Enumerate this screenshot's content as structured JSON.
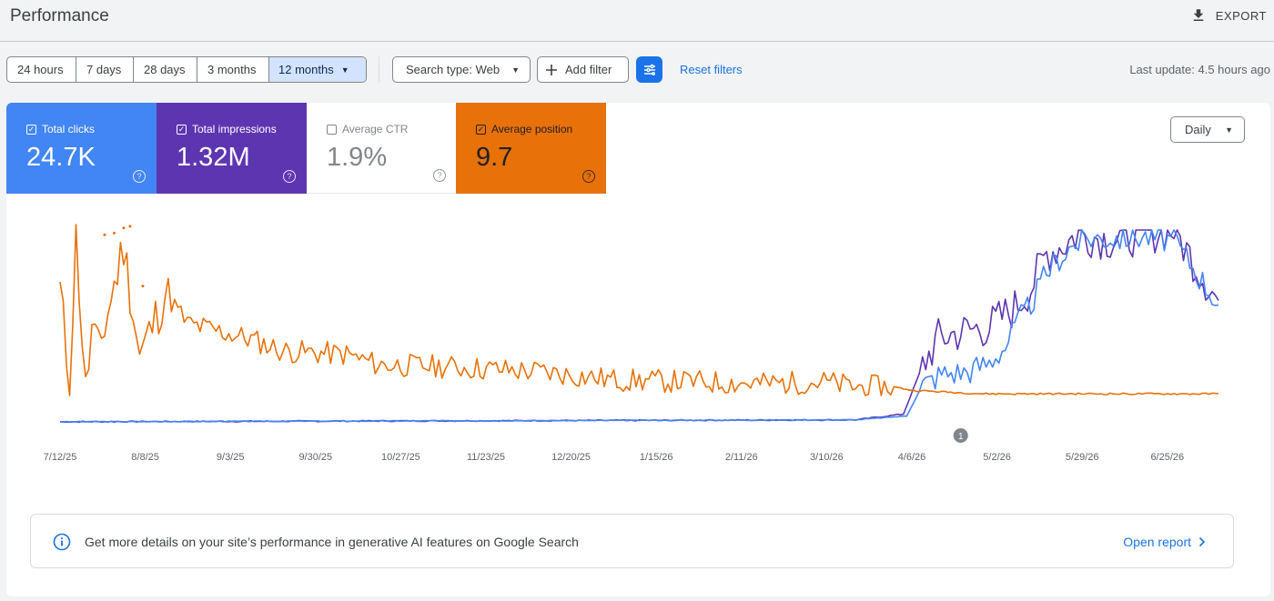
{
  "header": {
    "title": "Performance",
    "export_label": "EXPORT"
  },
  "toolbar": {
    "ranges": [
      "24 hours",
      "7 days",
      "28 days",
      "3 months",
      "12 months"
    ],
    "search_type": "Search type: Web",
    "add_filter": "Add filter",
    "reset_filters": "Reset filters",
    "last_update": "Last update: 4.5 hours ago"
  },
  "metrics": {
    "clicks": {
      "label": "Total clicks",
      "value": "24.7K",
      "checked": true,
      "color": "#4285f4"
    },
    "impressions": {
      "label": "Total impressions",
      "value": "1.32M",
      "checked": true,
      "color": "#5e35b1"
    },
    "ctr": {
      "label": "Average CTR",
      "value": "1.9%",
      "checked": false
    },
    "position": {
      "label": "Average position",
      "value": "9.7",
      "checked": true,
      "color": "#e8710a"
    }
  },
  "granularity": "Daily",
  "chart_data": {
    "type": "line",
    "x_ticks": [
      "7/12/25",
      "8/8/25",
      "9/3/25",
      "9/30/25",
      "10/27/25",
      "11/23/25",
      "12/20/25",
      "1/15/26",
      "2/11/26",
      "3/10/26",
      "4/6/26",
      "5/2/26",
      "5/29/26",
      "6/25/26"
    ],
    "x_range": [
      "7/12/25",
      "7/11/26"
    ],
    "annotation": {
      "label": "1",
      "date": "4/21/26"
    },
    "y_scale": "each series scaled independently, no y-axis labels",
    "grid": false,
    "series": [
      {
        "name": "Total clicks",
        "color": "#4285f4",
        "anchors": [
          [
            0,
            1
          ],
          [
            250,
            2
          ],
          [
            266,
            4
          ],
          [
            271,
            20
          ],
          [
            277,
            26
          ],
          [
            285,
            27
          ],
          [
            292,
            32
          ],
          [
            297,
            40
          ],
          [
            300,
            50
          ],
          [
            305,
            62
          ],
          [
            310,
            78
          ],
          [
            313,
            84
          ],
          [
            318,
            92
          ],
          [
            323,
            96
          ],
          [
            330,
            96
          ],
          [
            340,
            97
          ],
          [
            350,
            95
          ],
          [
            364,
            62
          ]
        ]
      },
      {
        "name": "Total impressions",
        "color": "#5e35b1",
        "anchors": [
          [
            0,
            1
          ],
          [
            250,
            2
          ],
          [
            265,
            5
          ],
          [
            271,
            30
          ],
          [
            276,
            44
          ],
          [
            285,
            48
          ],
          [
            292,
            50
          ],
          [
            300,
            60
          ],
          [
            305,
            70
          ],
          [
            310,
            88
          ],
          [
            315,
            92
          ],
          [
            320,
            98
          ],
          [
            330,
            95
          ],
          [
            340,
            98
          ],
          [
            350,
            100
          ],
          [
            364,
            63
          ]
        ]
      },
      {
        "name": "Average position",
        "color": "#e8710a",
        "anchors": [
          [
            0,
            62
          ],
          [
            3,
            5
          ],
          [
            5,
            95
          ],
          [
            8,
            2
          ],
          [
            10,
            38
          ],
          [
            12,
            25
          ],
          [
            20,
            88
          ],
          [
            25,
            23
          ],
          [
            30,
            45
          ],
          [
            33,
            60
          ],
          [
            40,
            42
          ],
          [
            60,
            33
          ],
          [
            70,
            26
          ],
          [
            90,
            24
          ],
          [
            100,
            18
          ],
          [
            120,
            17
          ],
          [
            150,
            14
          ],
          [
            175,
            9
          ],
          [
            200,
            8
          ],
          [
            220,
            7
          ],
          [
            240,
            8
          ],
          [
            250,
            5
          ],
          [
            262,
            5
          ],
          [
            268,
            3
          ],
          [
            290,
            1
          ],
          [
            364,
            1
          ]
        ]
      }
    ]
  },
  "banner": {
    "message": "Get more details on your site’s performance in generative AI features on Google Search",
    "link": "Open report"
  }
}
